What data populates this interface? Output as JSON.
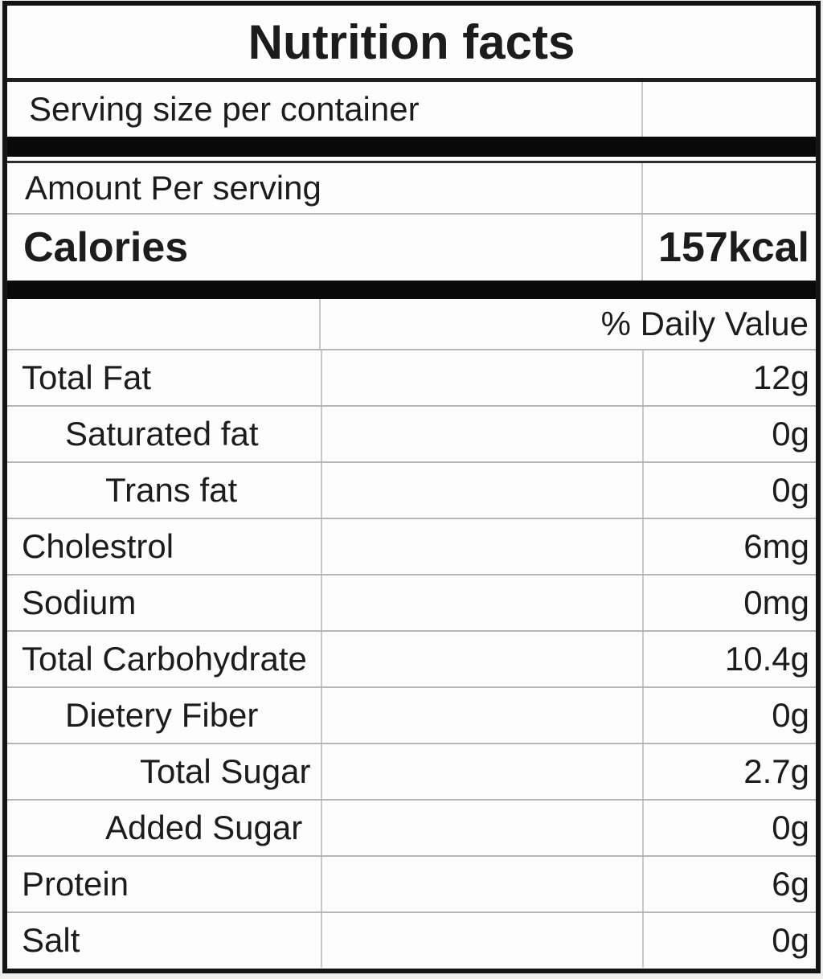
{
  "label": {
    "title": "Nutrition facts",
    "serving_size_label": "Serving size per container",
    "amount_per_serving_label": "Amount Per serving",
    "calories_label": "Calories",
    "calories_value": "157kcal",
    "daily_value_header": "% Daily Value",
    "nutrients": [
      {
        "label": "Total Fat",
        "value": "12g",
        "indent": 0
      },
      {
        "label": "Saturated fat",
        "value": "0g",
        "indent": 1
      },
      {
        "label": "Trans fat",
        "value": "0g",
        "indent": 2
      },
      {
        "label": "Cholestrol",
        "value": "6mg",
        "indent": 0
      },
      {
        "label": "Sodium",
        "value": "0mg",
        "indent": 0
      },
      {
        "label": "Total Carbohydrate",
        "value": "10.4g",
        "indent": 0
      },
      {
        "label": "Dietery Fiber",
        "value": "0g",
        "indent": 1
      },
      {
        "label": "Total Sugar",
        "value": "2.7g",
        "indent": 3
      },
      {
        "label": "Added Sugar",
        "value": "0g",
        "indent": 2
      },
      {
        "label": "Protein",
        "value": "6g",
        "indent": 0
      },
      {
        "label": "Salt",
        "value": "0g",
        "indent": 0
      }
    ]
  },
  "colors": {
    "text": "#1c1c1c",
    "outer_border": "#141414",
    "separator_bar": "#0a0a0a",
    "row_line": "#b7b4b4",
    "column_divider": "#c9c6c6",
    "background": "#fdfdfd",
    "page_background": "#f0eeed"
  }
}
